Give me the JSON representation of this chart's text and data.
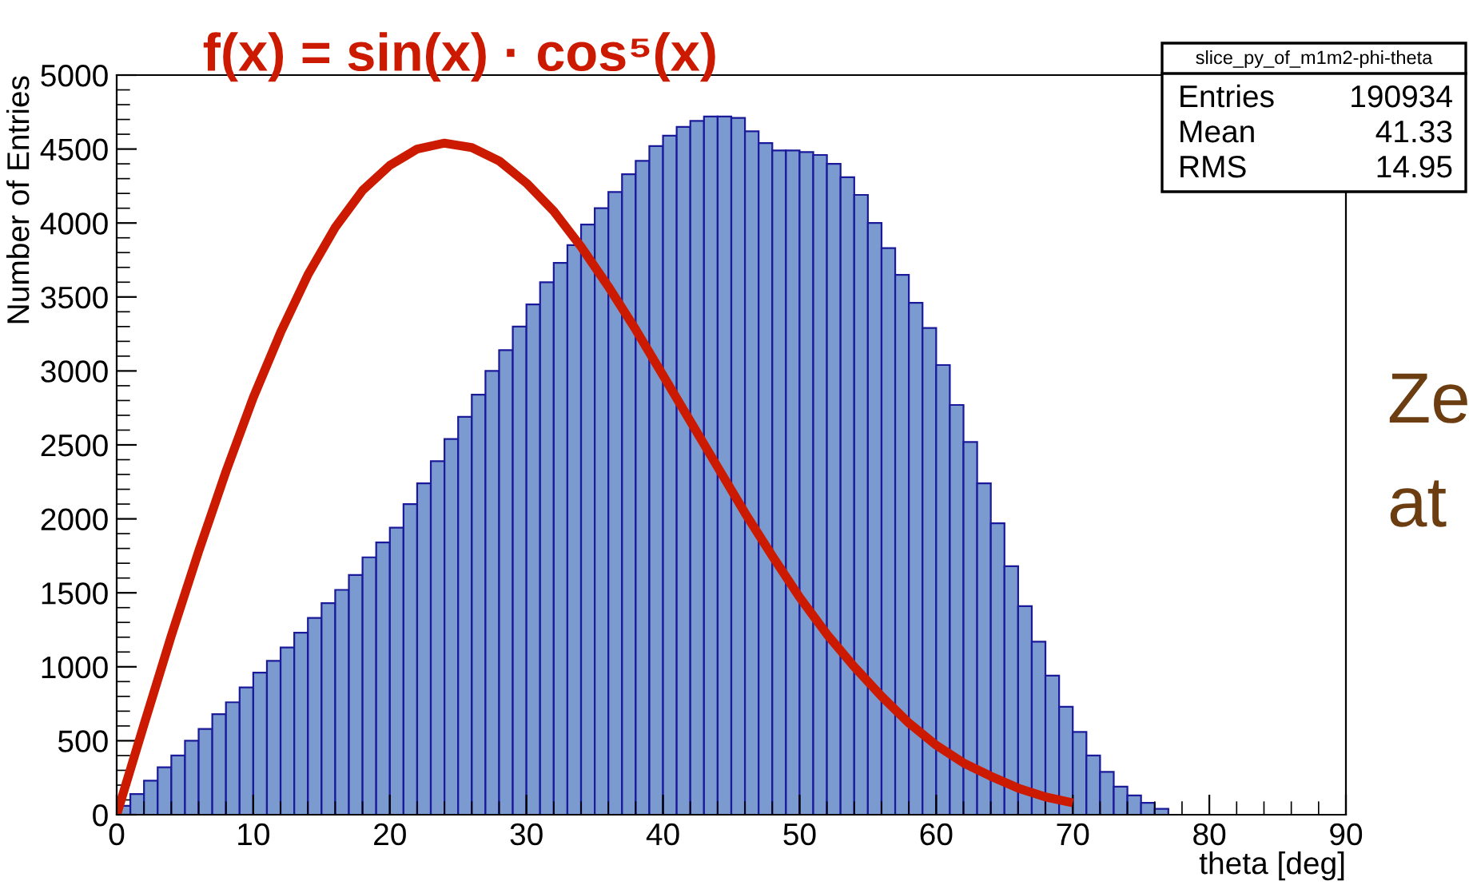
{
  "chart_data": {
    "type": "histogram",
    "title": "f(x) = sin(x) · cos⁵(x)",
    "xlabel": "theta [deg]",
    "ylabel": "Number of Entries",
    "bins": [
      0,
      1,
      2,
      3,
      4,
      5,
      6,
      7,
      8,
      9,
      10,
      11,
      12,
      13,
      14,
      15,
      16,
      17,
      18,
      19,
      20,
      21,
      22,
      23,
      24,
      25,
      26,
      27,
      28,
      29,
      30,
      31,
      32,
      33,
      34,
      35,
      36,
      37,
      38,
      39,
      40,
      41,
      42,
      43,
      44,
      45,
      46,
      47,
      48,
      49,
      50,
      51,
      52,
      53,
      54,
      55,
      56,
      57,
      58,
      59,
      60,
      61,
      62,
      63,
      64,
      65,
      66,
      67,
      68,
      69,
      70,
      71,
      72,
      73,
      74,
      75,
      76,
      77
    ],
    "series": [
      {
        "color": "#7b9ad0",
        "values": [
          60,
          140,
          230,
          320,
          400,
          500,
          580,
          680,
          760,
          860,
          960,
          1040,
          1130,
          1230,
          1330,
          1430,
          1520,
          1620,
          1740,
          1840,
          1940,
          2100,
          2240,
          2390,
          2540,
          2690,
          2840,
          3000,
          3140,
          3300,
          3450,
          3600,
          3730,
          3850,
          3990,
          4100,
          4210,
          4330,
          4420,
          4520,
          4590,
          4650,
          4690,
          4720,
          4720,
          4710,
          4620,
          4540,
          4490,
          4490,
          4480,
          4460,
          4400,
          4310,
          4190,
          4000,
          3830,
          3650,
          3460,
          3290,
          3040,
          2770,
          2520,
          2240,
          1970,
          1680,
          1410,
          1170,
          940,
          730,
          560,
          400,
          290,
          190,
          130,
          80,
          40
        ]
      },
      {
        "type": "line",
        "color": "#cc1a00",
        "x": [
          0,
          2,
          4,
          6,
          8,
          10,
          12,
          14,
          16,
          18,
          20,
          22,
          24,
          26,
          28,
          30,
          32,
          34,
          36,
          38,
          40,
          42,
          44,
          46,
          48,
          50,
          52,
          54,
          56,
          58,
          60,
          62,
          64,
          66,
          68,
          70
        ],
        "values": [
          0,
          610,
          1210,
          1780,
          2320,
          2820,
          3260,
          3650,
          3970,
          4220,
          4390,
          4500,
          4540,
          4510,
          4420,
          4270,
          4080,
          3840,
          3570,
          3280,
          2970,
          2660,
          2350,
          2040,
          1750,
          1470,
          1220,
          1000,
          800,
          620,
          470,
          350,
          260,
          180,
          120,
          80
        ]
      }
    ],
    "xlim": [
      0,
      90
    ],
    "xticks": [
      0,
      10,
      20,
      30,
      40,
      50,
      60,
      70,
      80,
      90
    ],
    "ylim": [
      0,
      5000
    ],
    "yticks": [
      0,
      500,
      1000,
      1500,
      2000,
      2500,
      3000,
      3500,
      4000,
      4500,
      5000
    ],
    "grid": false,
    "annotations": [
      "slice_py_of_m1m2-phi-theta",
      "Entries",
      "190934",
      "Mean",
      "41.33",
      "RMS",
      "14.95",
      "Ze",
      "at"
    ]
  }
}
